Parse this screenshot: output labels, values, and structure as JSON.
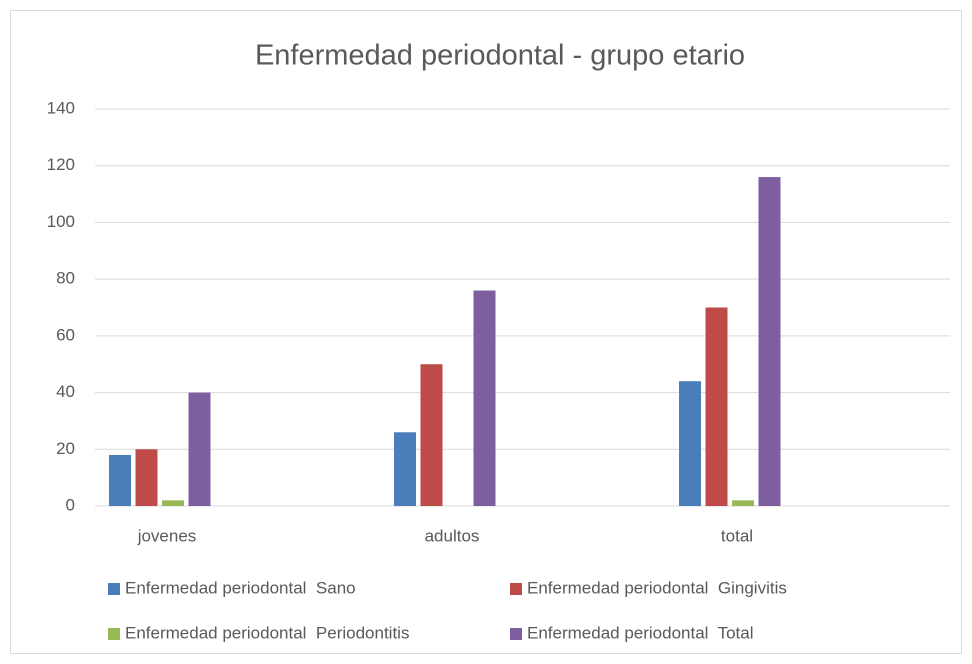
{
  "chart_data": {
    "type": "bar",
    "title": "Enfermedad periodontal - grupo etario",
    "categories": [
      "jovenes",
      "adultos",
      "total"
    ],
    "series": [
      {
        "name": "Enfermedad periodontal  Sano",
        "color": "#4a7ebb",
        "values": [
          18,
          26,
          44
        ]
      },
      {
        "name": "Enfermedad periodontal  Gingivitis",
        "color": "#be4b48",
        "values": [
          20,
          50,
          70
        ]
      },
      {
        "name": "Enfermedad periodontal  Periodontitis",
        "color": "#98b954",
        "values": [
          2,
          0,
          2
        ]
      },
      {
        "name": "Enfermedad periodontal  Total",
        "color": "#7d5fa0",
        "values": [
          40,
          76,
          116
        ]
      }
    ],
    "ylim": [
      0,
      140
    ],
    "yticks": [
      0,
      20,
      40,
      60,
      80,
      100,
      120,
      140
    ],
    "grid": true,
    "legend": "bottom"
  }
}
